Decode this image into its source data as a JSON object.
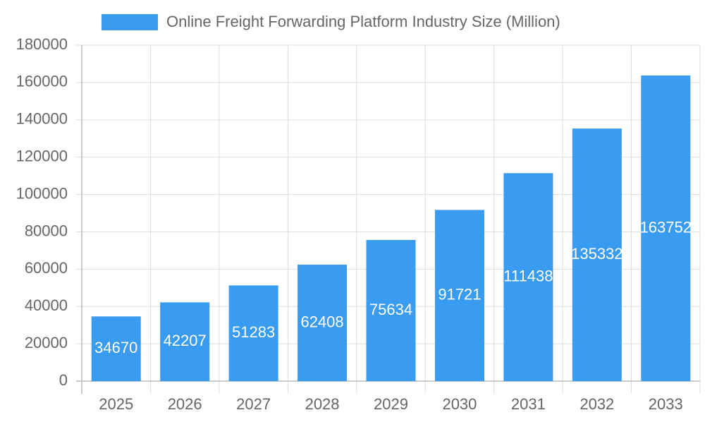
{
  "chart_data": {
    "type": "bar",
    "categories": [
      "2025",
      "2026",
      "2027",
      "2028",
      "2029",
      "2030",
      "2031",
      "2032",
      "2033"
    ],
    "series": [
      {
        "name": "Online Freight Forwarding Platform Industry Size (Million)",
        "color": "#399cf0",
        "values": [
          34670,
          42207,
          51283,
          62408,
          75634,
          91721,
          111438,
          135332,
          163752
        ]
      }
    ],
    "ylim": [
      0,
      180000
    ],
    "yticks": [
      0,
      20000,
      40000,
      60000,
      80000,
      100000,
      120000,
      140000,
      160000,
      180000
    ],
    "grid": true,
    "legend": "top"
  }
}
